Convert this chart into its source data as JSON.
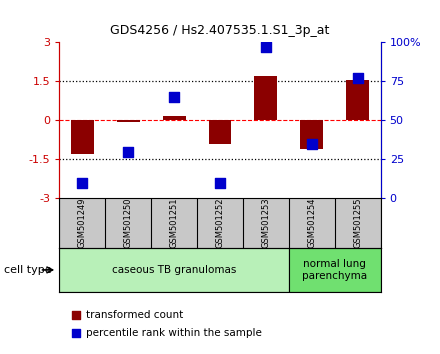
{
  "title": "GDS4256 / Hs2.407535.1.S1_3p_at",
  "samples": [
    "GSM501249",
    "GSM501250",
    "GSM501251",
    "GSM501252",
    "GSM501253",
    "GSM501254",
    "GSM501255"
  ],
  "transformed_count": [
    -1.3,
    -0.05,
    0.15,
    -0.9,
    1.7,
    -1.1,
    1.55
  ],
  "percentile_rank": [
    10,
    30,
    65,
    10,
    97,
    35,
    77
  ],
  "groups": [
    {
      "label": "caseous TB granulomas",
      "start": 0,
      "end": 5,
      "color": "#b8f0b8"
    },
    {
      "label": "normal lung\nparenchyma",
      "start": 5,
      "end": 7,
      "color": "#70e070"
    }
  ],
  "ylim_left": [
    -3,
    3
  ],
  "ylim_right": [
    0,
    100
  ],
  "yticks_left": [
    -3,
    -1.5,
    0,
    1.5,
    3
  ],
  "ytick_labels_left": [
    "-3",
    "-1.5",
    "0",
    "1.5",
    "3"
  ],
  "yticks_right": [
    0,
    25,
    50,
    75,
    100
  ],
  "ytick_labels_right": [
    "0",
    "25",
    "50",
    "75",
    "100%"
  ],
  "hlines": [
    -1.5,
    0,
    1.5
  ],
  "hline_styles": [
    "dotted",
    "dashed",
    "dotted"
  ],
  "hline_colors": [
    "black",
    "red",
    "black"
  ],
  "bar_color": "#8b0000",
  "dot_color": "#0000cc",
  "bar_width": 0.5,
  "dot_size": 45,
  "legend_items": [
    {
      "label": "transformed count",
      "color": "#8b0000"
    },
    {
      "label": "percentile rank within the sample",
      "color": "#0000cc"
    }
  ],
  "cell_type_label": "cell type",
  "bg_plot": "#ffffff",
  "bg_sample_row": "#c8c8c8",
  "left_yaxis_color": "#cc0000",
  "right_yaxis_color": "#0000cc",
  "title_fontsize": 9,
  "tick_fontsize": 8,
  "sample_fontsize": 6,
  "group_fontsize": 7.5,
  "legend_fontsize": 7.5
}
